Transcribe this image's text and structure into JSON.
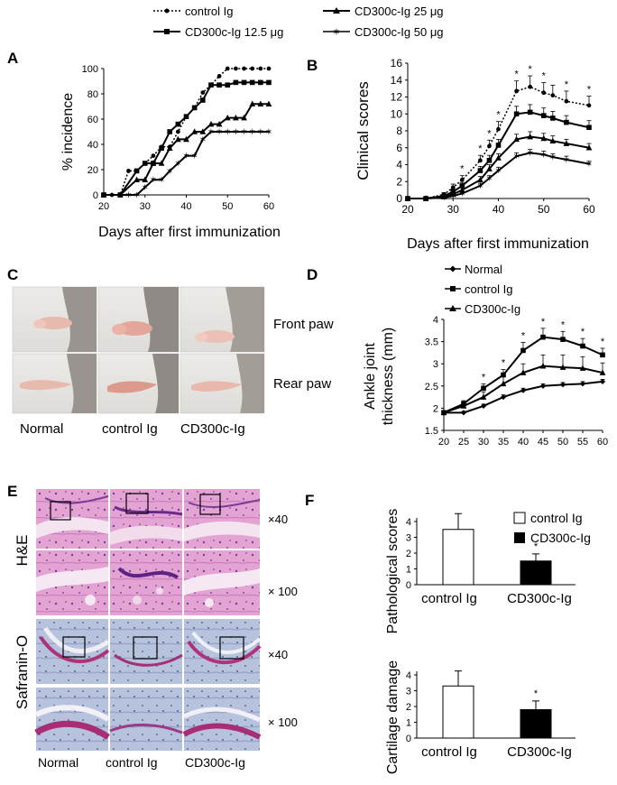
{
  "figure": {
    "panels": {
      "A": "A",
      "B": "B",
      "C": "C",
      "D": "D",
      "E": "E",
      "F": "F"
    },
    "legend_top": {
      "items": [
        {
          "label": "control Ig",
          "marker": "circle",
          "dash": true
        },
        {
          "label": "CD300c-Ig 12.5 μg",
          "marker": "square",
          "dash": false
        },
        {
          "label": "CD300c-Ig 25 μg",
          "marker": "triangle",
          "dash": false
        },
        {
          "label": "CD300c-Ig 50 μg",
          "marker": "star",
          "dash": false
        }
      ]
    },
    "photo_C": {
      "row_labels": [
        "Front paw",
        "Rear paw"
      ],
      "col_labels": [
        "Normal",
        "control Ig",
        "CD300c-Ig"
      ]
    },
    "histology_E": {
      "row_stain_labels": [
        "H&E",
        "Safranin-O"
      ],
      "magnifications": [
        "×40",
        "× 100",
        "×40",
        "× 100"
      ],
      "col_labels": [
        "Normal",
        "control Ig",
        "CD300c-Ig"
      ]
    },
    "colors": {
      "ink": "#000000",
      "he_pink": "#d98fc4",
      "he_purple": "#8a4aa6",
      "saf_blue": "#9fb0cf",
      "saf_red": "#b0337a",
      "skin": "#e8c0b4",
      "fur": "#9a9490"
    }
  },
  "chart_data": [
    {
      "id": "A",
      "type": "line",
      "xlabel": "Days after first immunization",
      "ylabel": "% incidence",
      "xlim": [
        20,
        60
      ],
      "ylim": [
        0,
        100
      ],
      "xticks": [
        20,
        30,
        40,
        50,
        60
      ],
      "yticks": [
        0,
        20,
        40,
        60,
        80,
        100
      ],
      "series": [
        {
          "name": "control Ig",
          "marker": "circle",
          "dash": true,
          "x": [
            20,
            22,
            24,
            26,
            28,
            30,
            32,
            34,
            36,
            38,
            40,
            42,
            44,
            46,
            48,
            50,
            52,
            54,
            56,
            58,
            60
          ],
          "y": [
            0,
            0,
            0,
            19,
            19,
            25,
            31,
            38,
            38,
            50,
            62,
            69,
            81,
            87,
            94,
            100,
            100,
            100,
            100,
            100,
            100
          ]
        },
        {
          "name": "CD300c-Ig 12.5 μg",
          "marker": "square",
          "dash": false,
          "x": [
            20,
            24,
            28,
            30,
            32,
            34,
            36,
            38,
            40,
            42,
            44,
            46,
            48,
            50,
            52,
            54,
            56,
            58,
            60
          ],
          "y": [
            0,
            0,
            19,
            25,
            25,
            37,
            50,
            56,
            62,
            69,
            75,
            87,
            87,
            87,
            89,
            89,
            89,
            89,
            89
          ]
        },
        {
          "name": "CD300c-Ig 25 μg",
          "marker": "triangle",
          "dash": false,
          "x": [
            20,
            24,
            28,
            30,
            32,
            34,
            36,
            38,
            40,
            42,
            44,
            46,
            48,
            50,
            52,
            54,
            56,
            58,
            60
          ],
          "y": [
            0,
            0,
            12,
            12,
            25,
            25,
            37,
            44,
            44,
            50,
            50,
            56,
            56,
            61,
            61,
            61,
            72,
            72,
            72
          ]
        },
        {
          "name": "CD300c-Ig 50 μg",
          "marker": "star",
          "dash": false,
          "x": [
            20,
            26,
            28,
            30,
            32,
            34,
            36,
            38,
            40,
            42,
            44,
            46,
            48,
            50,
            52,
            54,
            56,
            58,
            60
          ],
          "y": [
            0,
            0,
            0,
            6,
            12,
            12,
            19,
            25,
            31,
            31,
            44,
            50,
            50,
            50,
            50,
            50,
            50,
            50,
            50
          ]
        }
      ]
    },
    {
      "id": "B",
      "type": "line",
      "xlabel": "Days after first immunization",
      "ylabel": "Clinical scores",
      "xlim": [
        20,
        60
      ],
      "ylim": [
        0,
        16
      ],
      "xticks": [
        20,
        30,
        40,
        50,
        60
      ],
      "yticks": [
        0,
        2,
        4,
        6,
        8,
        10,
        12,
        14,
        16
      ],
      "x": [
        20,
        24,
        28,
        30,
        32,
        36,
        38,
        40,
        44,
        47,
        50,
        52,
        55,
        60
      ],
      "series": [
        {
          "name": "control Ig",
          "marker": "circle",
          "dash": true,
          "y": [
            0,
            0,
            0.5,
            1.3,
            2.2,
            4.5,
            6.2,
            8.2,
            12.7,
            13.2,
            12.5,
            12.2,
            11.5,
            11
          ],
          "err": [
            0,
            0,
            0.2,
            0.4,
            0.5,
            0.6,
            0.7,
            0.9,
            1.2,
            1.3,
            1.2,
            1.2,
            1.2,
            1.1
          ]
        },
        {
          "name": "CD300c-Ig 12.5 μg",
          "marker": "square",
          "dash": false,
          "y": [
            0,
            0,
            0.3,
            0.8,
            1.5,
            3.3,
            4.5,
            6.3,
            10,
            10.2,
            9.8,
            9.5,
            9,
            8.4
          ],
          "err": [
            0,
            0,
            0.1,
            0.3,
            0.4,
            0.5,
            0.6,
            0.7,
            0.9,
            0.9,
            0.9,
            0.8,
            0.8,
            0.8
          ]
        },
        {
          "name": "CD300c-Ig 25 μg",
          "marker": "triangle",
          "dash": false,
          "y": [
            0,
            0,
            0.2,
            0.5,
            1,
            2.2,
            3.5,
            4.8,
            7,
            7.3,
            7.1,
            6.8,
            6.5,
            6
          ],
          "err": [
            0,
            0,
            0.1,
            0.2,
            0.3,
            0.4,
            0.5,
            0.5,
            0.6,
            0.6,
            0.6,
            0.6,
            0.5,
            0.5
          ]
        },
        {
          "name": "CD300c-Ig 50 μg",
          "marker": "star",
          "dash": false,
          "y": [
            0,
            0,
            0.1,
            0.3,
            0.6,
            1.5,
            2.4,
            3.3,
            5,
            5.4,
            5.2,
            4.9,
            4.6,
            4.1
          ],
          "err": [
            0,
            0,
            0.1,
            0.1,
            0.2,
            0.3,
            0.3,
            0.4,
            0.4,
            0.4,
            0.4,
            0.4,
            0.4,
            0.3
          ]
        }
      ],
      "significance_at_x": [
        32,
        36,
        38,
        40,
        44,
        47,
        50,
        55,
        60
      ],
      "significance_mark": "*"
    },
    {
      "id": "D",
      "type": "line",
      "xlabel": "",
      "ylabel": "Ankle joint thickness (mm)",
      "ylabel_lines": [
        "Ankle joint",
        "thickness (mm)"
      ],
      "xlim": [
        20,
        60
      ],
      "ylim": [
        1.5,
        4
      ],
      "xticks": [
        20,
        25,
        30,
        35,
        40,
        45,
        50,
        55,
        60
      ],
      "yticks": [
        1.5,
        2,
        2.5,
        3,
        3.5,
        4
      ],
      "x": [
        20,
        25,
        30,
        35,
        40,
        45,
        50,
        55,
        60
      ],
      "series": [
        {
          "name": "Normal",
          "marker": "diamond",
          "y": [
            1.9,
            1.9,
            2.05,
            2.25,
            2.4,
            2.5,
            2.53,
            2.55,
            2.6
          ],
          "err": [
            0.03,
            0.03,
            0.04,
            0.05,
            0.05,
            0.05,
            0.05,
            0.05,
            0.05
          ]
        },
        {
          "name": "control Ig",
          "marker": "square",
          "y": [
            1.9,
            2.1,
            2.45,
            2.75,
            3.3,
            3.6,
            3.55,
            3.4,
            3.2
          ],
          "err": [
            0.05,
            0.07,
            0.1,
            0.12,
            0.18,
            0.2,
            0.18,
            0.17,
            0.15
          ]
        },
        {
          "name": "CD300c-Ig",
          "marker": "triangle",
          "y": [
            1.9,
            2.05,
            2.25,
            2.55,
            2.8,
            2.95,
            2.92,
            2.9,
            2.8
          ],
          "err": [
            0.05,
            0.08,
            0.12,
            0.17,
            0.2,
            0.25,
            0.28,
            0.26,
            0.22
          ]
        }
      ],
      "significance_at_x": [
        30,
        35,
        40,
        45,
        50,
        55,
        60
      ],
      "significance_mark": "*"
    },
    {
      "id": "F1",
      "type": "bar",
      "categories": [
        "control Ig",
        "CD300c-Ig"
      ],
      "values": [
        3.5,
        1.5
      ],
      "err": [
        1.0,
        0.45
      ],
      "fills": [
        "#ffffff",
        "#000000"
      ],
      "ylabel": "Pathological scores",
      "ylim": [
        0,
        4
      ],
      "yticks": [
        0,
        1,
        2,
        3,
        4
      ],
      "legend": [
        "control Ig",
        "CD300c-Ig"
      ],
      "significance": [
        null,
        "*"
      ]
    },
    {
      "id": "F2",
      "type": "bar",
      "categories": [
        "control Ig",
        "CD300c-Ig"
      ],
      "values": [
        3.3,
        1.8
      ],
      "err": [
        0.95,
        0.55
      ],
      "fills": [
        "#ffffff",
        "#000000"
      ],
      "ylabel": "Cartilage damage",
      "ylim": [
        0,
        4
      ],
      "yticks": [
        0,
        1,
        2,
        3,
        4
      ],
      "significance": [
        null,
        "*"
      ]
    }
  ]
}
